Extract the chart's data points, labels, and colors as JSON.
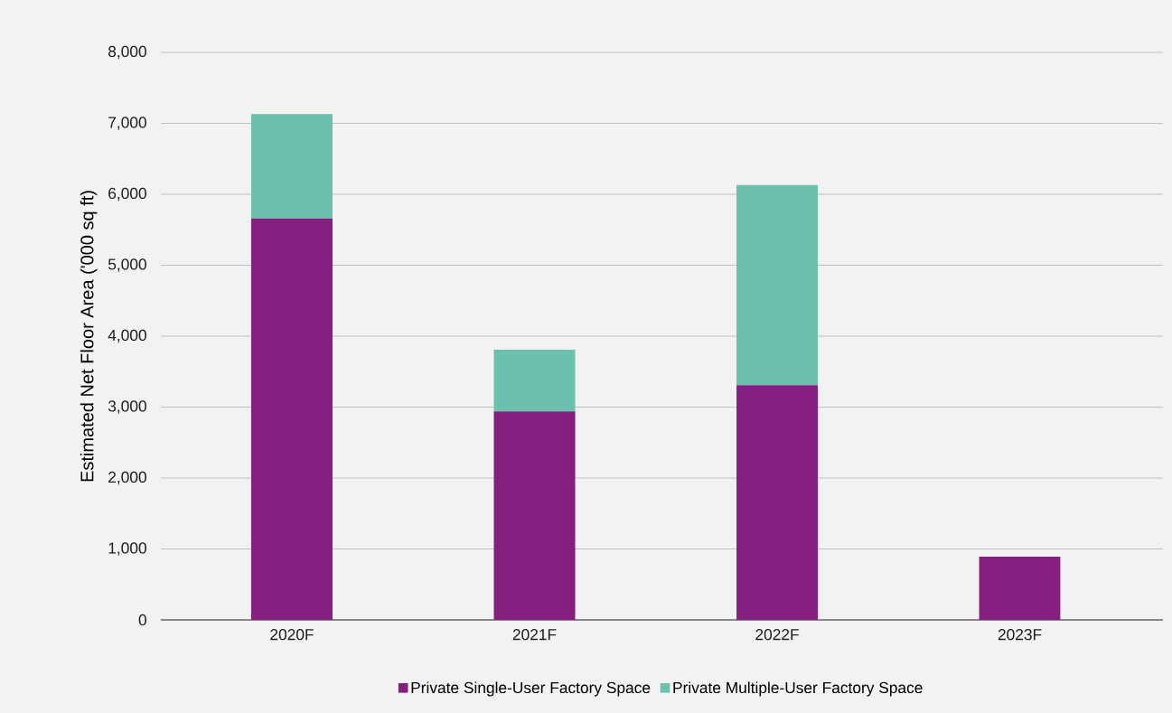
{
  "chart_data": {
    "type": "bar",
    "stacked": true,
    "ylabel": "Estimated Net Floor Area ('000 sq ft)",
    "categories": [
      "2020F",
      "2021F",
      "2022F",
      "2023F"
    ],
    "series": [
      {
        "name": "Private Single-User Factory Space",
        "color": "#841e7f",
        "values": [
          5660,
          2940,
          3310,
          890
        ]
      },
      {
        "name": "Private Multiple-User Factory Space",
        "color": "#6bc1ad",
        "values": [
          1470,
          870,
          2820,
          null
        ]
      }
    ],
    "ylim": [
      0,
      8000
    ],
    "yticks": [
      {
        "value": 0,
        "label": "0"
      },
      {
        "value": 1000,
        "label": "1,000"
      },
      {
        "value": 2000,
        "label": "2,000"
      },
      {
        "value": 3000,
        "label": "3,000"
      },
      {
        "value": 4000,
        "label": "4,000"
      },
      {
        "value": 5000,
        "label": "5,000"
      },
      {
        "value": 6000,
        "label": "6,000"
      },
      {
        "value": 7000,
        "label": "7,000"
      },
      {
        "value": 8000,
        "label": "8,000"
      }
    ],
    "grid": "y",
    "legend": "bottom"
  }
}
